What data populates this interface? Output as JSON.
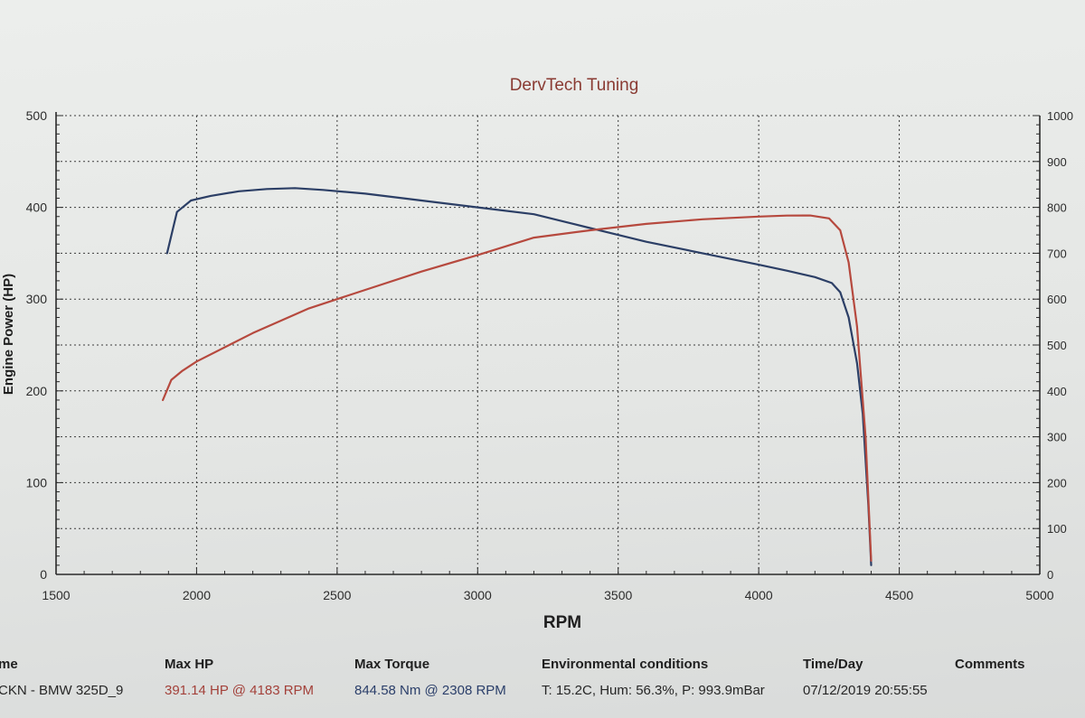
{
  "chart_data": {
    "type": "line",
    "title": "DervTech Tuning",
    "xlabel": "RPM",
    "ylabel": "Engine Power (HP)",
    "xlim": [
      1500,
      5000
    ],
    "ylim_left": [
      0,
      500
    ],
    "ylim_right": [
      0,
      1000
    ],
    "x_ticks": [
      "1500",
      "2000",
      "2500",
      "3000",
      "3500",
      "4000",
      "4500",
      "5000"
    ],
    "y_ticks_left": [
      "0",
      "100",
      "200",
      "300",
      "400",
      "500"
    ],
    "y_ticks_right": [
      "0",
      "100",
      "200",
      "300",
      "400",
      "500",
      "600",
      "700",
      "800",
      "900",
      "1000"
    ],
    "grid": true,
    "series": [
      {
        "name": "Torque",
        "axis": "right",
        "color": "#2c3f66",
        "x": [
          1895,
          1930,
          1980,
          2050,
          2150,
          2250,
          2350,
          2450,
          2600,
          2800,
          3000,
          3200,
          3400,
          3600,
          3800,
          4000,
          4100,
          4200,
          4260,
          4290,
          4320,
          4350,
          4370,
          4390,
          4400
        ],
        "y": [
          700,
          790,
          815,
          825,
          835,
          840,
          842,
          838,
          830,
          815,
          800,
          785,
          755,
          725,
          700,
          675,
          662,
          648,
          635,
          615,
          560,
          460,
          350,
          150,
          20
        ]
      },
      {
        "name": "Power",
        "axis": "left",
        "color": "#b6493e",
        "x": [
          1880,
          1910,
          1950,
          2000,
          2200,
          2400,
          2600,
          2800,
          3000,
          3200,
          3400,
          3600,
          3800,
          4000,
          4100,
          4183,
          4250,
          4290,
          4320,
          4350,
          4380,
          4400
        ],
        "y": [
          190,
          212,
          222,
          232,
          263,
          290,
          310,
          330,
          348,
          367,
          375,
          382,
          387,
          390,
          391,
          391.14,
          388,
          375,
          340,
          270,
          150,
          15
        ]
      }
    ]
  },
  "footer": {
    "name_header": "me",
    "name_value": "CKN - BMW 325D_9",
    "maxhp_header": "Max HP",
    "maxhp_value": "391.14 HP @ 4183 RPM",
    "maxtorque_header": "Max Torque",
    "maxtorque_value": "844.58 Nm @ 2308 RPM",
    "env_header": "Environmental conditions",
    "env_value": "T: 15.2C, Hum: 56.3%, P: 993.9mBar",
    "time_header": "Time/Day",
    "time_value": "07/12/2019 20:55:55",
    "comments_header": "Comments"
  }
}
